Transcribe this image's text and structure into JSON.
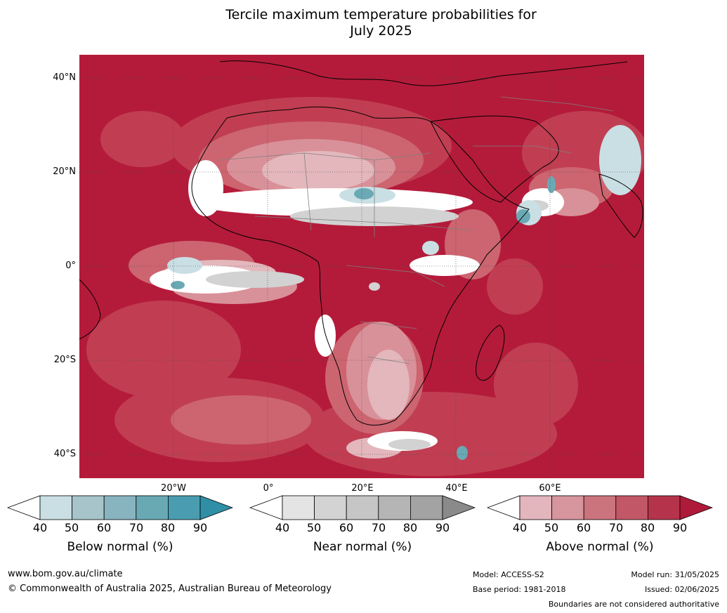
{
  "title_line1": "Tercile maximum temperature probabilities for",
  "title_line2": "July 2025",
  "map": {
    "lat_labels": [
      "40°N",
      "20°N",
      "0°",
      "20°S",
      "40°S"
    ],
    "lon_labels": [
      "20°W",
      "0°",
      "20°E",
      "40°E",
      "60°E"
    ],
    "colors": {
      "ocean_above_90": "#b41b3a",
      "above_80": "#c13e52",
      "above_70": "#cc6570",
      "above_60": "#d99199",
      "above_50": "#e3b7bc",
      "white_40": "#ffffff",
      "near_50": "#d2d2d2",
      "near_60": "#bdbdbd",
      "below_50": "#c9dfe4",
      "below_60": "#a6c8ce",
      "below_70": "#6aa9b4",
      "below_80": "#3e97a8"
    }
  },
  "legends": [
    {
      "label": "Below normal (%)",
      "ticks": [
        "40",
        "50",
        "60",
        "70",
        "80",
        "90"
      ],
      "colors": [
        "#ffffff",
        "#c9dfe4",
        "#a6c4ca",
        "#88b4bf",
        "#68a9b4",
        "#4a9db0",
        "#2f8fa6"
      ]
    },
    {
      "label": "Near normal (%)",
      "ticks": [
        "40",
        "50",
        "60",
        "70",
        "80",
        "90"
      ],
      "colors": [
        "#ffffff",
        "#e4e4e4",
        "#d3d3d3",
        "#c6c6c6",
        "#b5b5b5",
        "#a3a3a3",
        "#8a8a8a"
      ]
    },
    {
      "label": "Above normal (%)",
      "ticks": [
        "40",
        "50",
        "60",
        "70",
        "80",
        "90"
      ],
      "colors": [
        "#ffffff",
        "#e2b6bc",
        "#d7959d",
        "#cb747e",
        "#c15767",
        "#b5344c",
        "#b01a3a"
      ]
    }
  ],
  "footer": {
    "website": "www.bom.gov.au/climate",
    "copyright": "© Commonwealth of Australia 2025, Australian Bureau of Meteorology",
    "model": "Model: ACCESS-S2",
    "base_period": "Base period: 1981-2018",
    "model_run": "Model run: 31/05/2025",
    "issued": "Issued: 02/06/2025",
    "disclaimer": "Boundaries are not considered authoritative"
  }
}
